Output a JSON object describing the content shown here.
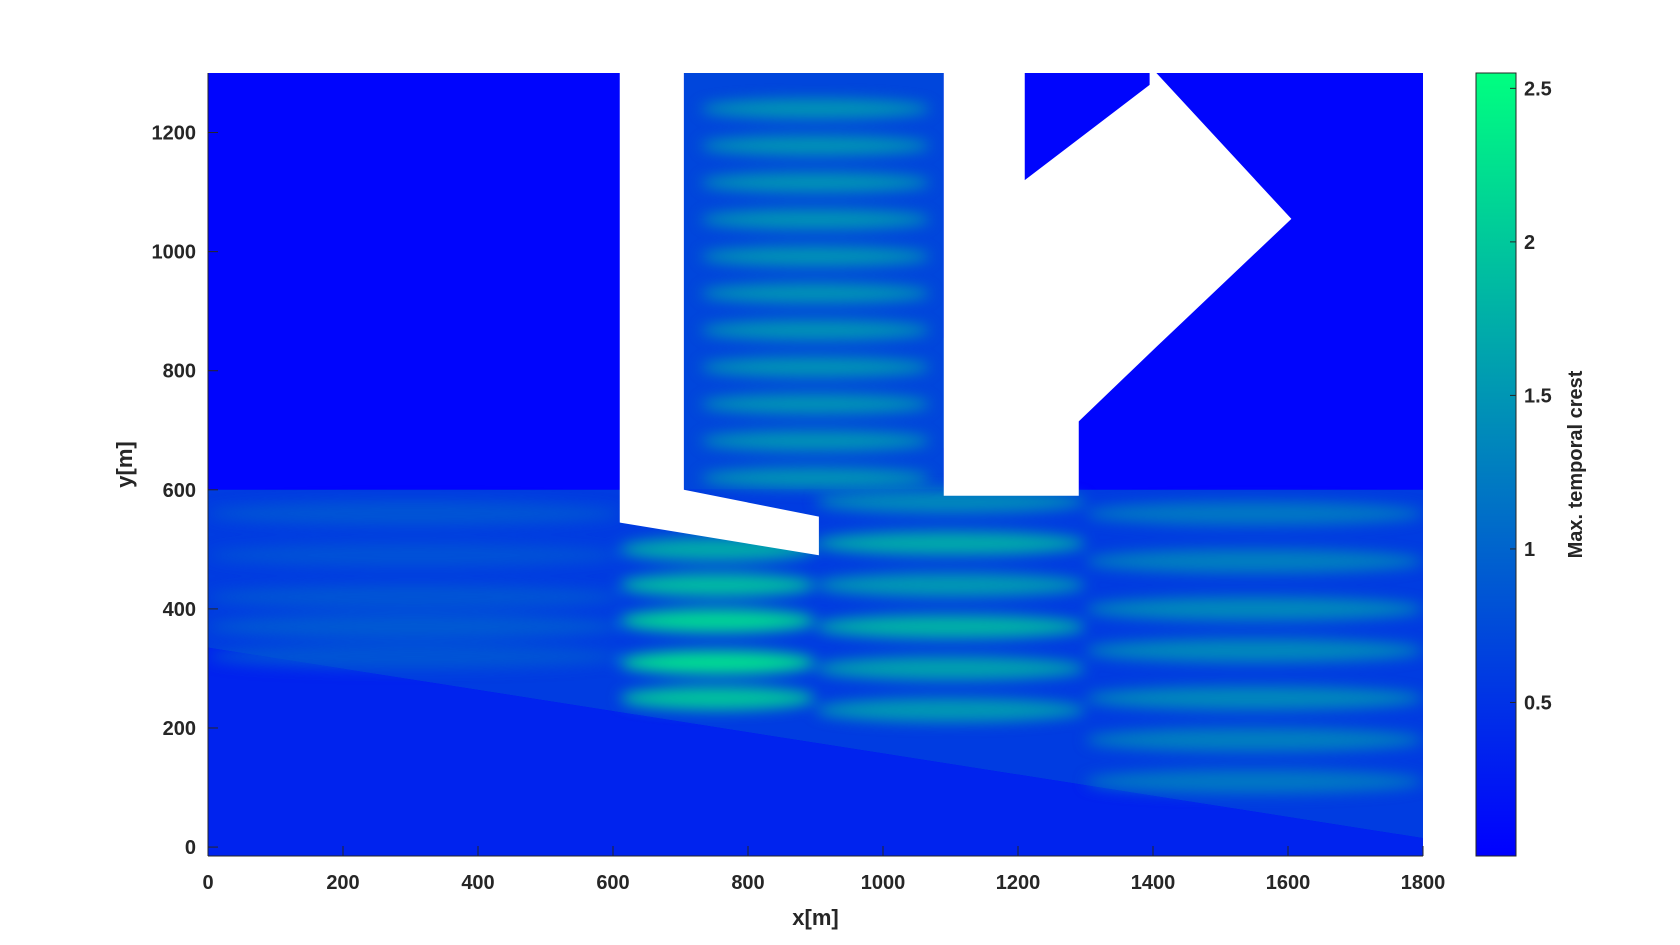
{
  "chart_data": {
    "type": "heatmap",
    "title": "",
    "xlabel": "x[m]",
    "ylabel": "y[m]",
    "xlim": [
      0,
      1800
    ],
    "ylim": [
      -15,
      1300
    ],
    "xticks": [
      0,
      200,
      400,
      600,
      800,
      1000,
      1200,
      1400,
      1600,
      1800
    ],
    "yticks": [
      0,
      200,
      400,
      600,
      800,
      1000,
      1200
    ],
    "colorbar": {
      "label": "Max. temporal crest",
      "range": [
        0,
        2.55
      ],
      "ticks": [
        0.5,
        1,
        1.5,
        2,
        2.5
      ],
      "color_low": "#0000ff",
      "color_high": "#00ff80"
    },
    "background_value": 0.05,
    "description_regions": {
      "shoreline_y_at_x0": 335,
      "shoreline_y_at_x1800": 15,
      "wave_zone_top_y": 600
    },
    "structures": [
      {
        "name": "left-breakwater",
        "polygon": [
          [
            610,
            1300
          ],
          [
            705,
            1300
          ],
          [
            705,
            600
          ],
          [
            905,
            555
          ],
          [
            905,
            490
          ],
          [
            610,
            545
          ]
        ]
      },
      {
        "name": "right-breakwater",
        "polygon": [
          [
            1090,
            1300
          ],
          [
            1210,
            1300
          ],
          [
            1210,
            1120
          ],
          [
            1395,
            1280
          ],
          [
            1395,
            1300
          ],
          [
            1405,
            1300
          ],
          [
            1605,
            1055
          ],
          [
            1405,
            840
          ],
          [
            1290,
            715
          ],
          [
            1290,
            590
          ],
          [
            1090,
            590
          ],
          [
            1090,
            855
          ],
          [
            1365,
            1130
          ],
          [
            1460,
            1045
          ],
          [
            1090,
            670
          ]
        ]
      }
    ],
    "wave_bands": [
      {
        "x_range": [
          0,
          610
        ],
        "y": 560,
        "value": 0.9
      },
      {
        "x_range": [
          0,
          610
        ],
        "y": 490,
        "value": 0.85
      },
      {
        "x_range": [
          0,
          610
        ],
        "y": 420,
        "value": 0.9
      },
      {
        "x_range": [
          0,
          610
        ],
        "y": 370,
        "value": 0.95
      },
      {
        "x_range": [
          0,
          610
        ],
        "y": 320,
        "value": 0.9
      },
      {
        "x_range": [
          610,
          900
        ],
        "y": 500,
        "value": 1.9
      },
      {
        "x_range": [
          610,
          900
        ],
        "y": 440,
        "value": 2.1
      },
      {
        "x_range": [
          610,
          900
        ],
        "y": 380,
        "value": 2.4
      },
      {
        "x_range": [
          610,
          900
        ],
        "y": 310,
        "value": 2.5
      },
      {
        "x_range": [
          610,
          900
        ],
        "y": 250,
        "value": 2.2
      },
      {
        "x_range": [
          900,
          1300
        ],
        "y": 580,
        "value": 1.5
      },
      {
        "x_range": [
          900,
          1300
        ],
        "y": 510,
        "value": 1.9
      },
      {
        "x_range": [
          900,
          1300
        ],
        "y": 440,
        "value": 1.7
      },
      {
        "x_range": [
          900,
          1300
        ],
        "y": 370,
        "value": 2.0
      },
      {
        "x_range": [
          900,
          1300
        ],
        "y": 300,
        "value": 1.8
      },
      {
        "x_range": [
          900,
          1300
        ],
        "y": 230,
        "value": 1.7
      },
      {
        "x_range": [
          1300,
          1800
        ],
        "y": 560,
        "value": 1.3
      },
      {
        "x_range": [
          1300,
          1800
        ],
        "y": 480,
        "value": 1.4
      },
      {
        "x_range": [
          1300,
          1800
        ],
        "y": 400,
        "value": 1.5
      },
      {
        "x_range": [
          1300,
          1800
        ],
        "y": 330,
        "value": 1.5
      },
      {
        "x_range": [
          1300,
          1800
        ],
        "y": 250,
        "value": 1.5
      },
      {
        "x_range": [
          1300,
          1800
        ],
        "y": 180,
        "value": 1.4
      },
      {
        "x_range": [
          1300,
          1800
        ],
        "y": 110,
        "value": 1.3
      }
    ]
  }
}
